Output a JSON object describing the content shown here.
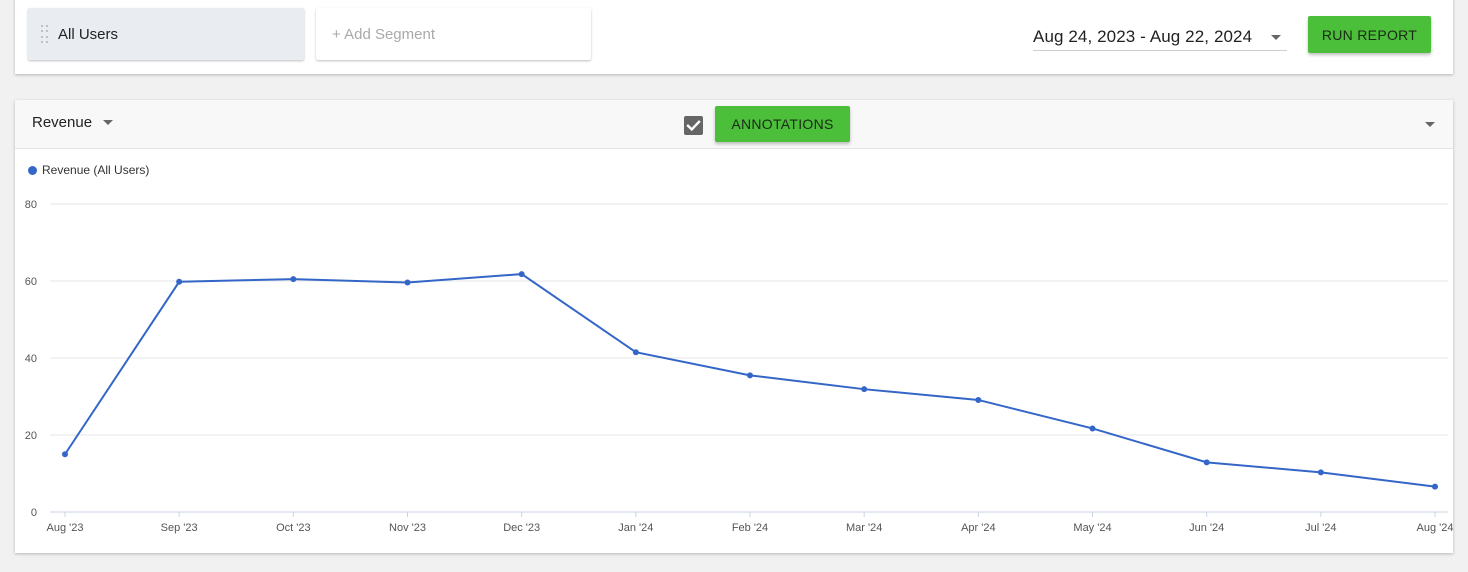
{
  "segments": {
    "active_label": "All Users",
    "add_placeholder": "+ Add Segment"
  },
  "date_range": {
    "value": "Aug 24, 2023 - Aug 22, 2024"
  },
  "run_report": {
    "label": "RUN REPORT"
  },
  "chart_panel": {
    "metric": "Revenue",
    "annotations_checked": true,
    "annotations_label": "ANNOTATIONS"
  },
  "colors": {
    "accent_green": "#4cbf3a",
    "series_blue": "#3466c8"
  },
  "chart_data": {
    "type": "line",
    "categories": [
      "Aug '23",
      "Sep '23",
      "Oct '23",
      "Nov '23",
      "Dec '23",
      "Jan '24",
      "Feb '24",
      "Mar '24",
      "Apr '24",
      "May '24",
      "Jun '24",
      "Jul '24",
      "Aug '24"
    ],
    "series": [
      {
        "name": "Revenue (All Users)",
        "values": [
          15,
          59.8,
          60.5,
          59.6,
          61.8,
          41.5,
          35.5,
          31.9,
          29.1,
          21.7,
          12.9,
          10.3,
          6.6
        ]
      }
    ],
    "y_ticks": [
      0,
      20,
      40,
      60,
      80
    ],
    "ylim": [
      0,
      80
    ],
    "grid": true,
    "legend": "top-left"
  }
}
